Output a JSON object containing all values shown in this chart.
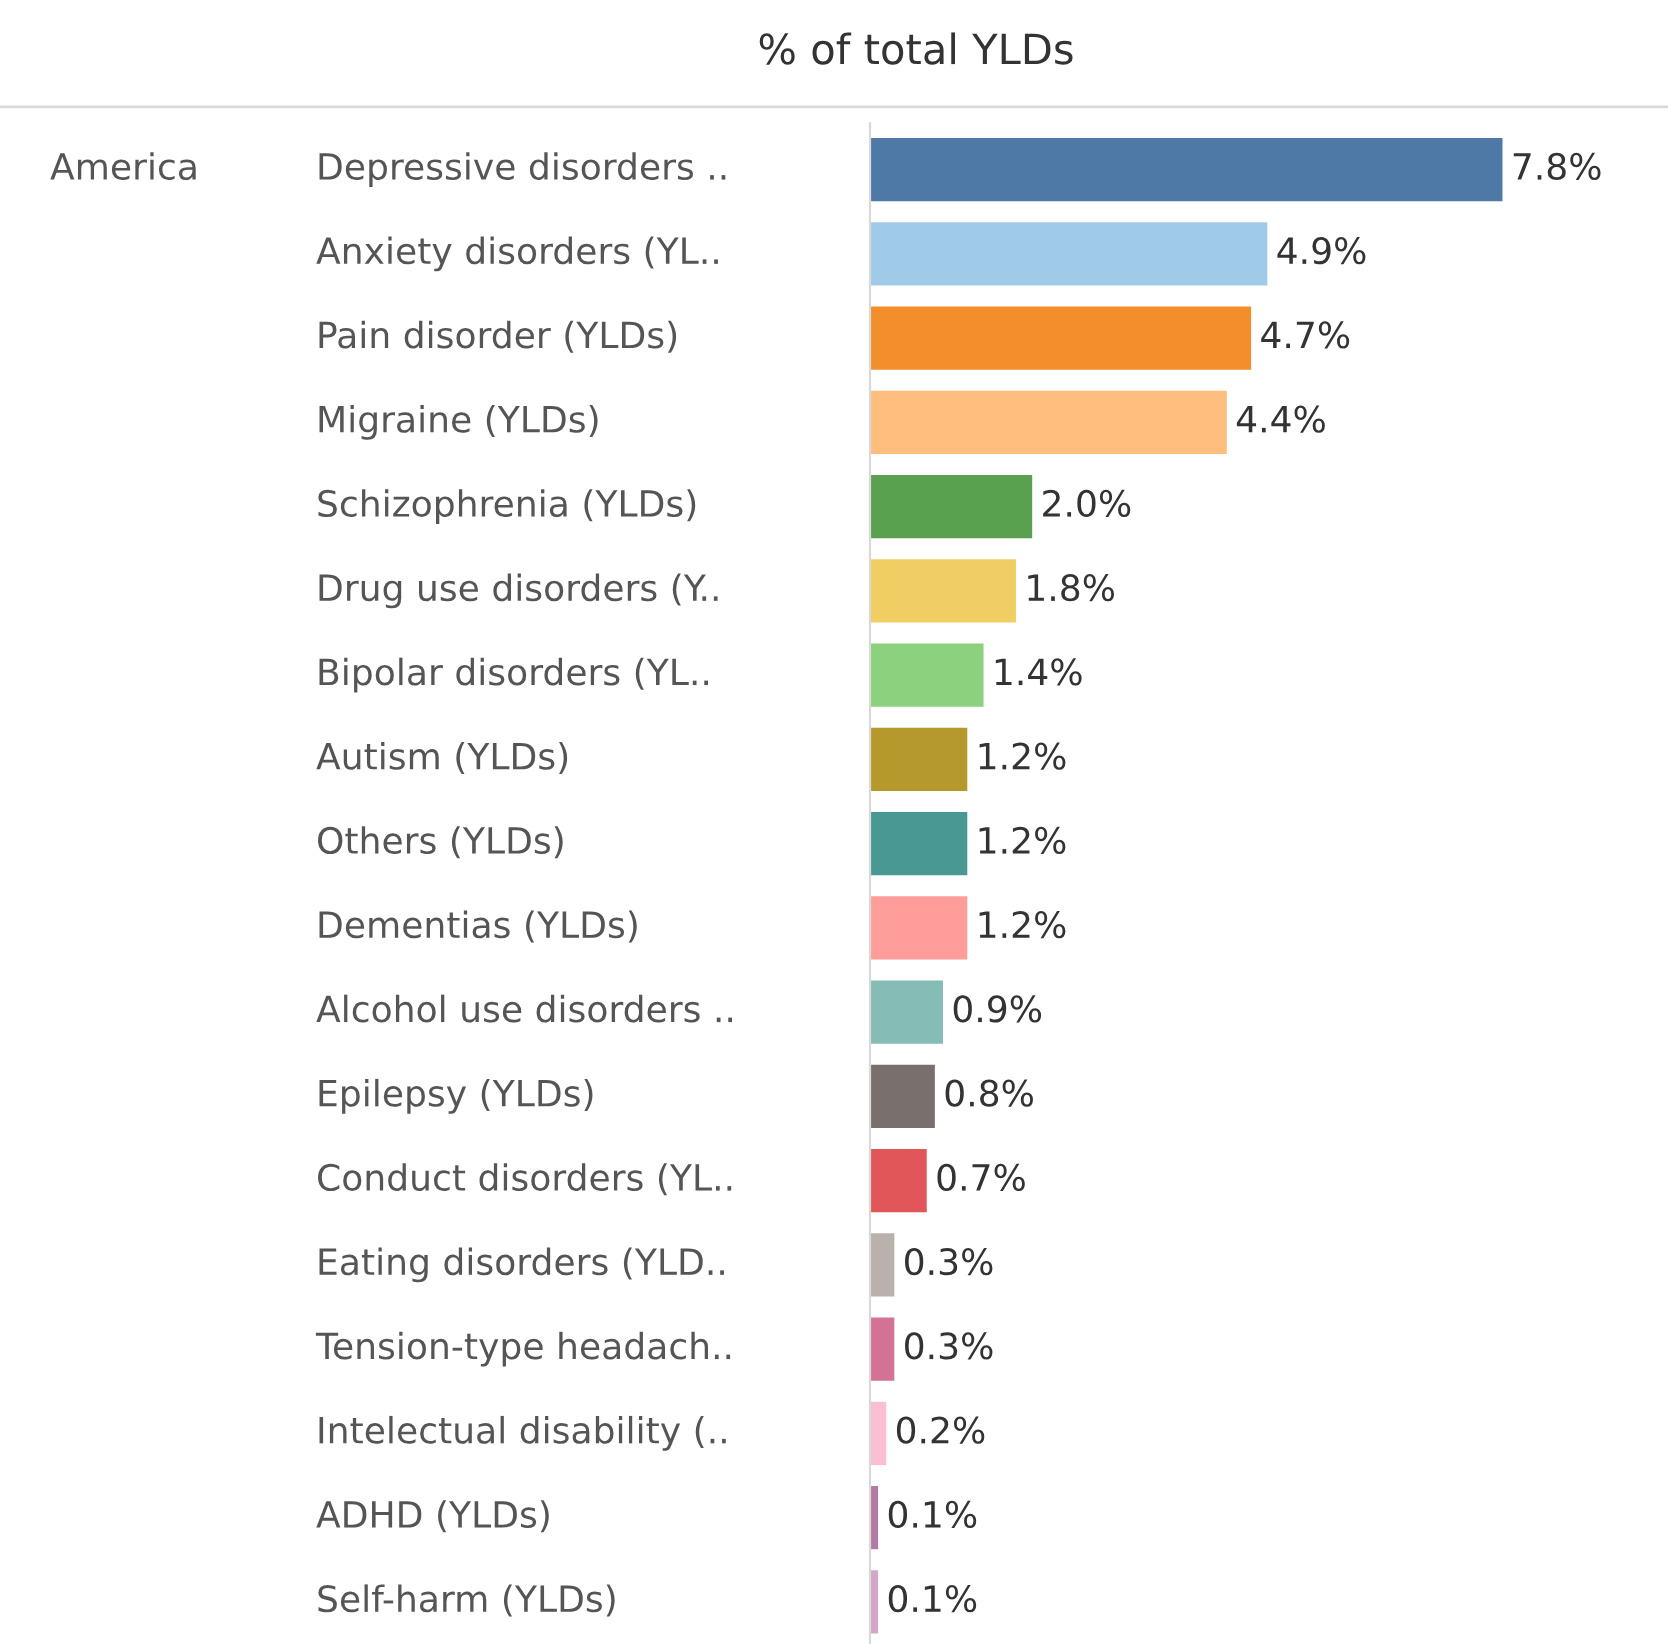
{
  "chart_data": {
    "type": "bar",
    "orientation": "horizontal",
    "title": "% of total YLDs",
    "annotations": [
      "America"
    ],
    "categories": [
      "Depressive disorders ..",
      "Anxiety disorders (YL..",
      "Pain disorder (YLDs)",
      "Migraine (YLDs)",
      "Schizophrenia (YLDs)",
      "Drug use disorders (Y..",
      "Bipolar disorders (YL..",
      "Autism (YLDs)",
      "Others (YLDs)",
      "Dementias (YLDs)",
      "Alcohol use disorders ..",
      "Epilepsy (YLDs)",
      "Conduct disorders (YL..",
      "Eating disorders (YLD..",
      "Tension-type headach..",
      "Intelectual disability (..",
      "ADHD (YLDs)",
      "Self-harm (YLDs)"
    ],
    "values": [
      7.8,
      4.9,
      4.7,
      4.4,
      2.0,
      1.8,
      1.4,
      1.2,
      1.2,
      1.2,
      0.9,
      0.8,
      0.7,
      0.3,
      0.3,
      0.2,
      0.1,
      0.1
    ],
    "value_labels": [
      "7.8%",
      "4.9%",
      "4.7%",
      "4.4%",
      "2.0%",
      "1.8%",
      "1.4%",
      "1.2%",
      "1.2%",
      "1.2%",
      "0.9%",
      "0.8%",
      "0.7%",
      "0.3%",
      "0.3%",
      "0.2%",
      "0.1%",
      "0.1%"
    ],
    "colors": [
      "#4e79a7",
      "#a0cbe8",
      "#f28e2b",
      "#ffbe7d",
      "#59a14f",
      "#f1ce63",
      "#8cd17d",
      "#b6992d",
      "#499894",
      "#ff9d9a",
      "#86bcb6",
      "#79706e",
      "#e15759",
      "#bab0ac",
      "#d37295",
      "#fabfd2",
      "#b07aa1",
      "#d4a6c8"
    ],
    "legend": false
  }
}
